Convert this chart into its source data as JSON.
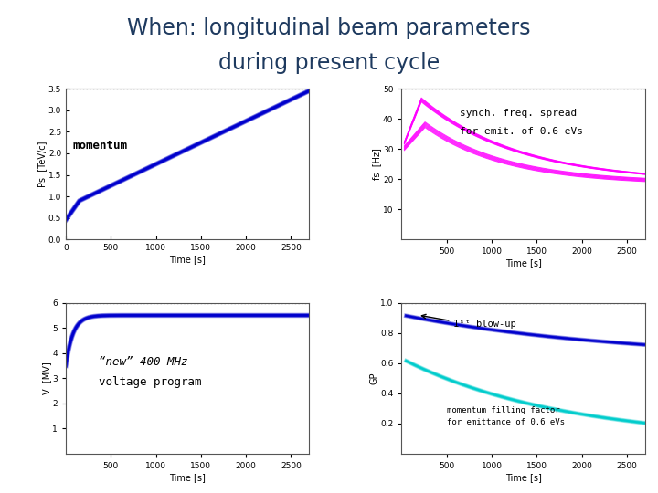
{
  "title_line1": "When: longitudinal beam parameters",
  "title_line2": "during present cycle",
  "title_color": "#1e3a5f",
  "background_color": "#ffffff",
  "plot_bg_color": "#ffffff",
  "momentum_label": "momentum",
  "synch_label1": "synch. freq. spread",
  "synch_label2": "for emit. of 0.6 eVs",
  "voltage_label1": "“new” 400 MHz",
  "voltage_label2": "voltage program",
  "blowup_label": "1ˢᵗ blow-up",
  "mff_label1": "momentum filling factor",
  "mff_label2": "for emittance of 0.6 eVs",
  "time_max": 2700,
  "momentum_ylim": [
    0,
    3.5
  ],
  "momentum_yticks": [
    0,
    0.5,
    1,
    1.5,
    2,
    2.5,
    3,
    3.5
  ],
  "momentum_ylabel": "Ps  [TeV/c]",
  "synch_ylim": [
    0,
    50
  ],
  "synch_yticks": [
    10,
    20,
    30,
    40,
    50
  ],
  "synch_ylabel": "fs  [Hz]",
  "voltage_ylim": [
    0,
    6
  ],
  "voltage_yticks": [
    1,
    2,
    3,
    4,
    5,
    6
  ],
  "voltage_ylabel": "V  [MV]",
  "mff_ylim": [
    0,
    1
  ],
  "mff_yticks": [
    0.2,
    0.4,
    0.6,
    0.8,
    1.0
  ],
  "mff_ylabel": "GP",
  "xlabel": "Time [s]",
  "xticks_full": [
    0,
    500,
    1000,
    1500,
    2000,
    2500
  ],
  "xticks_no0": [
    500,
    1000,
    1500,
    2000,
    2500
  ],
  "line_color_blue": "#0000cc",
  "line_color_magenta": "#ff00ff",
  "line_color_cyan": "#00cccc",
  "dotted_color": "#888888",
  "axis_color": "#888888"
}
